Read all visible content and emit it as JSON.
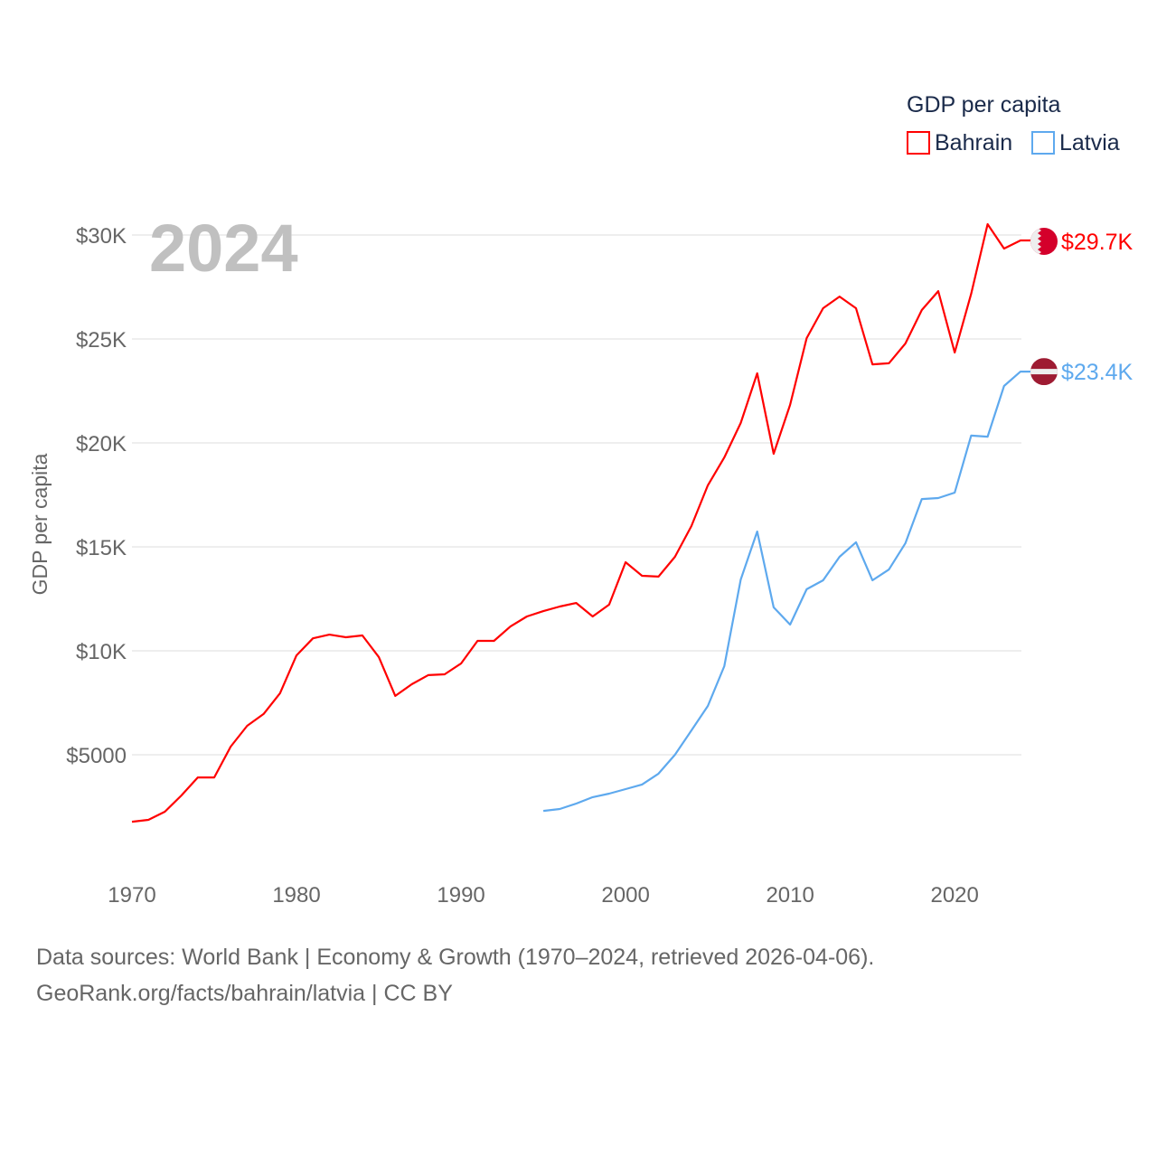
{
  "chart_data": {
    "type": "line",
    "title": "GDP per capita",
    "ylabel": "GDP per capita",
    "xlabel": "",
    "year_label": "2024",
    "xlim": [
      1970,
      2024
    ],
    "ylim": [
      0,
      30000
    ],
    "x_ticks": [
      1970,
      1980,
      1990,
      2000,
      2010,
      2020
    ],
    "y_ticks": [
      {
        "v": 5000,
        "label": "$5000"
      },
      {
        "v": 10000,
        "label": "$10K"
      },
      {
        "v": 15000,
        "label": "$15K"
      },
      {
        "v": 20000,
        "label": "$20K"
      },
      {
        "v": 25000,
        "label": "$25K"
      },
      {
        "v": 30000,
        "label": "$30K"
      }
    ],
    "grid": true,
    "legend_position": "top-right",
    "series": [
      {
        "name": "Bahrain",
        "color": "#ff0000",
        "end_label": "$29.7K",
        "start_year": 1970,
        "values": [
          1780,
          1870,
          2260,
          3040,
          3910,
          3910,
          5390,
          6390,
          6960,
          7960,
          9780,
          10600,
          10780,
          10650,
          10740,
          9700,
          7830,
          8390,
          8830,
          8870,
          9390,
          10480,
          10480,
          11170,
          11650,
          11910,
          12130,
          12300,
          11650,
          12220,
          14260,
          13610,
          13570,
          14520,
          16000,
          17960,
          19300,
          20960,
          23350,
          19480,
          21830,
          25040,
          26480,
          27040,
          26480,
          23780,
          23830,
          24780,
          26390,
          27300,
          24350,
          27170,
          30520,
          29350,
          29740
        ]
      },
      {
        "name": "Latvia",
        "color": "#5ea9ee",
        "end_label": "$23.4K",
        "start_year": 1995,
        "values": [
          2300,
          2390,
          2650,
          2960,
          3130,
          3350,
          3570,
          4090,
          5000,
          6170,
          7350,
          9260,
          13430,
          15740,
          12090,
          11260,
          12960,
          13390,
          14520,
          15220,
          13390,
          13910,
          15170,
          17300,
          17350,
          17610,
          20350,
          20300,
          22740,
          23430
        ]
      }
    ]
  },
  "footer": {
    "line1": "Data sources: World Bank | Economy & Growth (1970–2024, retrieved 2026-04-06).",
    "line2": "GeoRank.org/facts/bahrain/latvia | CC BY"
  }
}
